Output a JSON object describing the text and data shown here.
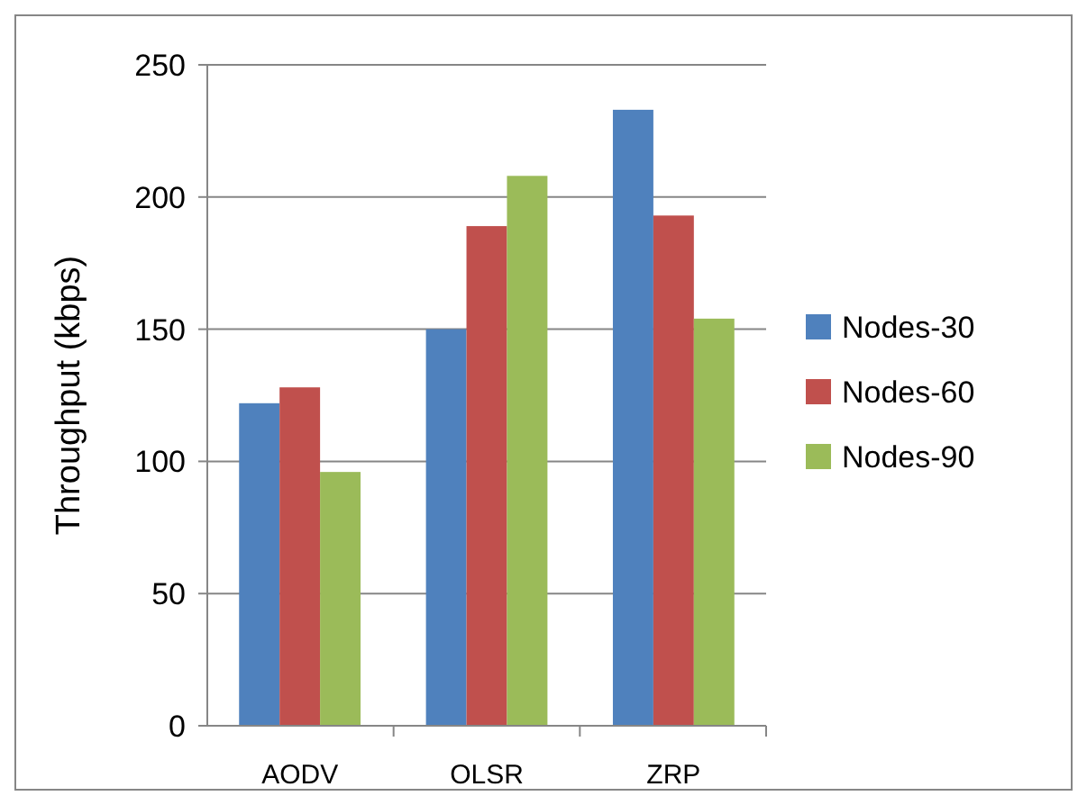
{
  "chart_data": {
    "type": "bar",
    "ylabel": "Throughput (kbps)",
    "categories": [
      "AODV",
      "OLSR",
      "ZRP"
    ],
    "series": [
      {
        "name": "Nodes-30",
        "color": "#4f81bd",
        "values": [
          122,
          150,
          233
        ]
      },
      {
        "name": "Nodes-60",
        "color": "#c0504d",
        "values": [
          128,
          189,
          193
        ]
      },
      {
        "name": "Nodes-90",
        "color": "#9bbb59",
        "values": [
          96,
          208,
          154
        ]
      }
    ],
    "ylim": [
      0,
      250
    ],
    "yticks": [
      0,
      50,
      100,
      150,
      200,
      250
    ],
    "grid": "y",
    "legend": "right"
  }
}
